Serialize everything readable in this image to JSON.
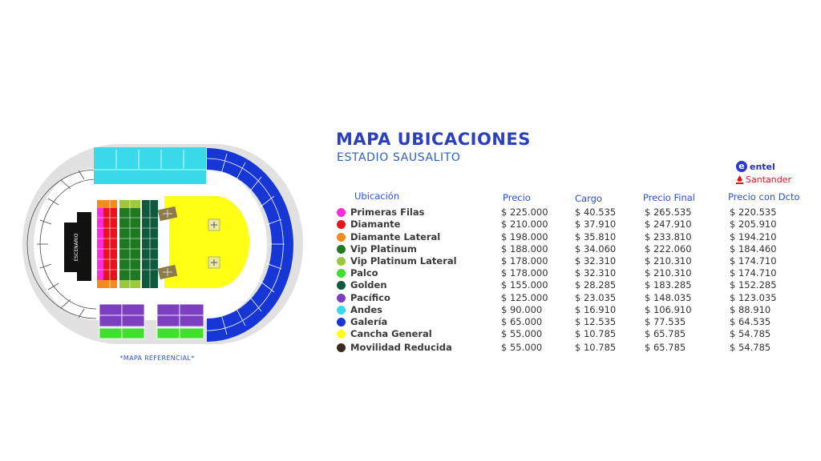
{
  "map": {
    "stage_label": "ESCENARIO",
    "note": "*MAPA REFERENCIAL*"
  },
  "header": {
    "title": "MAPA UBICACIONES",
    "subtitle": "ESTADIO SAUSALITO"
  },
  "brands": {
    "entel": "entel",
    "santander": "Santander"
  },
  "table": {
    "columns": [
      "Ubicación",
      "Precio",
      "Cargo",
      "Precio Final",
      "Precio con Dcto"
    ],
    "rows": [
      {
        "name": "Primeras Filas",
        "color": "#ff2bd6",
        "precio": "$ 225.000",
        "cargo": "$ 40.535",
        "final": "$ 265.535",
        "dcto": "$ 220.535"
      },
      {
        "name": "Diamante",
        "color": "#e8141d",
        "precio": "$ 210.000",
        "cargo": "$ 37.910",
        "final": "$ 247.910",
        "dcto": "$ 205.910"
      },
      {
        "name": "Diamante Lateral",
        "color": "#f28c1c",
        "precio": "$ 198.000",
        "cargo": "$ 35.810",
        "final": "$ 233.810",
        "dcto": "$ 194.210"
      },
      {
        "name": "Vip Platinum",
        "color": "#1e7a21",
        "precio": "$ 188.000",
        "cargo": "$ 34.060",
        "final": "$ 222.060",
        "dcto": "$ 184.460"
      },
      {
        "name": "Vip Platinum Lateral",
        "color": "#9bc93a",
        "precio": "$ 178.000",
        "cargo": "$ 32.310",
        "final": "$ 210.310",
        "dcto": "$ 174.710"
      },
      {
        "name": "Palco",
        "color": "#3fe12c",
        "precio": "$ 178.000",
        "cargo": "$ 32.310",
        "final": "$ 210.310",
        "dcto": "$ 174.710"
      },
      {
        "name": "Golden",
        "color": "#0f5a3c",
        "precio": "$ 155.000",
        "cargo": "$ 28.285",
        "final": "$ 183.285",
        "dcto": "$ 152.285"
      },
      {
        "name": "Pacífico",
        "color": "#7b3fc0",
        "precio": "$ 125.000",
        "cargo": "$ 23.035",
        "final": "$ 148.035",
        "dcto": "$ 123.035"
      },
      {
        "name": "Andes",
        "color": "#3ad9ea",
        "precio": "$ 90.000",
        "cargo": "$ 16.910",
        "final": "$ 106.910",
        "dcto": "$ 88.910"
      },
      {
        "name": "Galería",
        "color": "#1637d6",
        "precio": "$ 65.000",
        "cargo": "$ 12.535",
        "final": "$ 77.535",
        "dcto": "$ 64.535"
      },
      {
        "name": "Cancha General",
        "color": "#ffff14",
        "precio": "$ 55.000",
        "cargo": "$ 10.785",
        "final": "$ 65.785",
        "dcto": "$ 54.785"
      },
      {
        "name": "Movilidad Reducida",
        "color": "#3b2a1e",
        "precio": "$ 55.000",
        "cargo": "$ 10.785",
        "final": "$ 65.785",
        "dcto": "$ 54.785"
      }
    ]
  },
  "colors": {
    "title": "#2b3fbf",
    "andes": "#3ad9ea",
    "galeria": "#1637d6",
    "pacifico": "#7b3fc0",
    "palco": "#3fe12c",
    "cancha": "#ffff14",
    "stage": "#111111"
  }
}
